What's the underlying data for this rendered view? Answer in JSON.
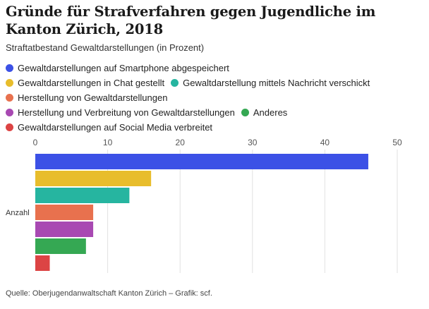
{
  "title": "Gründe für Strafverfahren gegen Jugendliche im Kanton Zürich, 2018",
  "subtitle": "Straftatbestand Gewaltdarstellungen (in Prozent)",
  "source": "Quelle: Oberjugendanwaltschaft Kanton Zürich – Grafik: scf.",
  "chart_data": {
    "type": "bar",
    "orientation": "horizontal",
    "categories": [
      "Anzahl"
    ],
    "xlim": [
      0,
      50
    ],
    "xticks": [
      "0",
      "10",
      "20",
      "30",
      "40",
      "50"
    ],
    "grid": true,
    "legend_position": "top",
    "series": [
      {
        "name": "Gewaltdarstellungen auf Smartphone abgespeichert",
        "values": [
          46
        ],
        "color": "#3c51e6"
      },
      {
        "name": "Gewaltdarstellungen in Chat gestellt",
        "values": [
          16
        ],
        "color": "#e8bd2c"
      },
      {
        "name": "Gewaltdarstellung mittels Nachricht verschickt",
        "values": [
          13
        ],
        "color": "#26b5a0"
      },
      {
        "name": "Herstellung von Gewaltdarstellungen",
        "values": [
          8
        ],
        "color": "#e8714e"
      },
      {
        "name": "Herstellung und Verbreitung von Gewaltdarstellungen",
        "values": [
          8
        ],
        "color": "#a849b2"
      },
      {
        "name": "Anderes",
        "values": [
          7
        ],
        "color": "#35a853"
      },
      {
        "name": "Gewaltdarstellungen auf Social Media verbreitet",
        "values": [
          2
        ],
        "color": "#dc4444"
      }
    ]
  }
}
